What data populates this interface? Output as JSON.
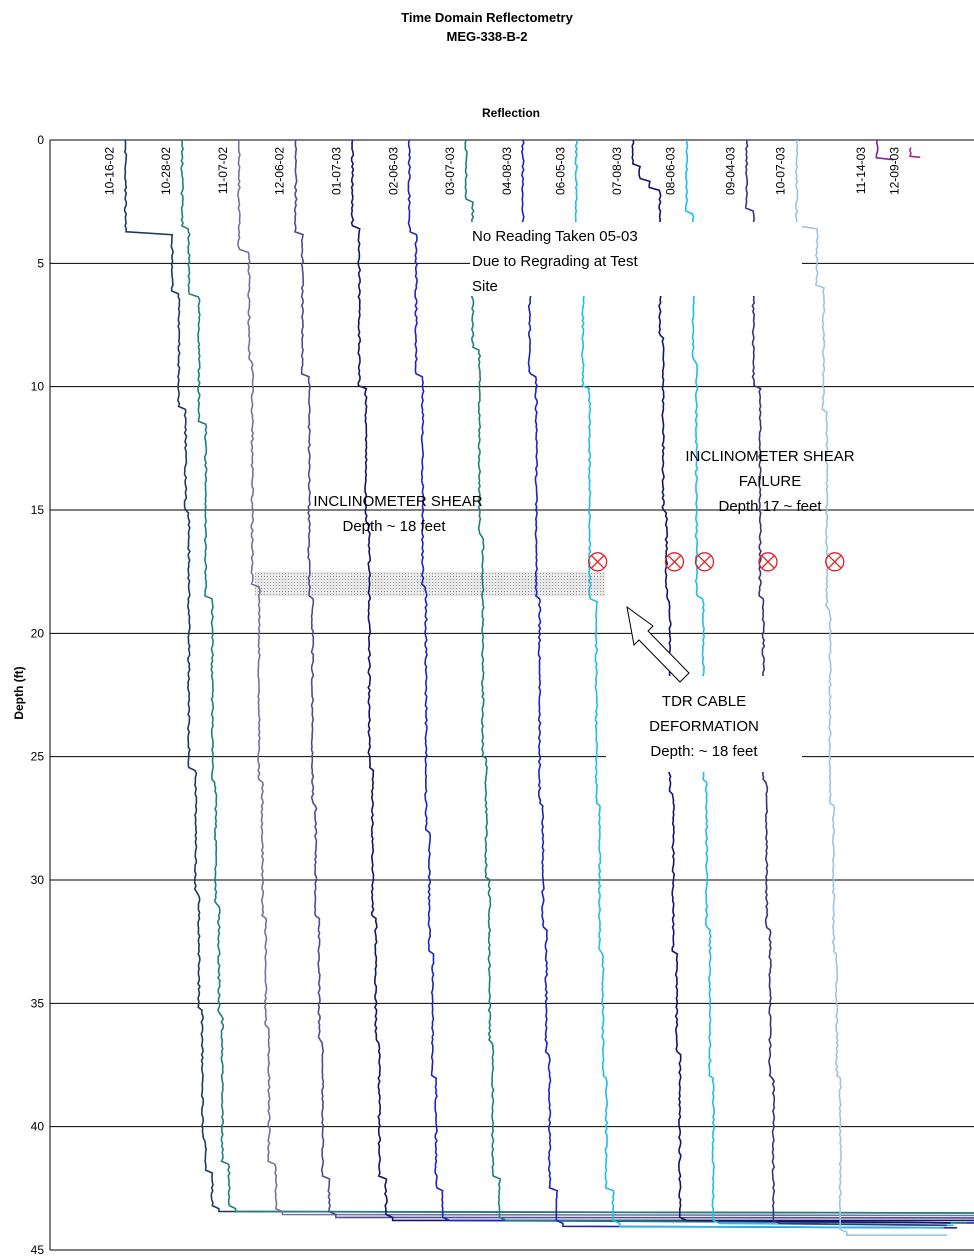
{
  "chart_data": {
    "type": "line",
    "title": "Time Domain Reflectometry",
    "subtitle": "MEG-338-B-2",
    "xlabel": "Reflection",
    "ylabel": "Depth (ft)",
    "ylim": [
      0,
      45
    ],
    "yticks": [
      0,
      5,
      10,
      15,
      20,
      25,
      30,
      35,
      40,
      45
    ],
    "y_inverted": true,
    "grid": "horizontal",
    "series": [
      {
        "name": "10-16-02",
        "color": "#1F3864",
        "offset": 0.1,
        "steps": [
          [
            0,
            0
          ],
          [
            3.8,
            0.14
          ],
          [
            6.2,
            0.16
          ],
          [
            10.8,
            0.18
          ],
          [
            15,
            0.19
          ],
          [
            25.5,
            0.21
          ],
          [
            30.5,
            0.22
          ],
          [
            35.2,
            0.23
          ],
          [
            40.5,
            0.24
          ],
          [
            41.8,
            0.26
          ],
          [
            43.3,
            0.28
          ],
          [
            43.5,
            2.6
          ]
        ]
      },
      {
        "name": "10-28-02",
        "color": "#1F7F7A",
        "offset": 0.27,
        "steps": [
          [
            0,
            0
          ],
          [
            3.5,
            0.02
          ],
          [
            6.3,
            0.05
          ],
          [
            11.5,
            0.07
          ],
          [
            18.5,
            0.09
          ],
          [
            26,
            0.1
          ],
          [
            31,
            0.11
          ],
          [
            35.5,
            0.12
          ],
          [
            41.5,
            0.14
          ],
          [
            43.3,
            0.16
          ],
          [
            43.5,
            2.4
          ]
        ]
      },
      {
        "name": "11-07-02",
        "color": "#76719E",
        "offset": 0.44,
        "steps": [
          [
            0,
            0
          ],
          [
            4.5,
            0.03
          ],
          [
            9,
            0.04
          ],
          [
            18,
            0.06
          ],
          [
            26,
            0.07
          ],
          [
            31.5,
            0.08
          ],
          [
            36,
            0.09
          ],
          [
            41.5,
            0.11
          ],
          [
            43.4,
            0.13
          ],
          [
            43.6,
            2.3
          ]
        ]
      },
      {
        "name": "12-06-02",
        "color": "#4F4A94",
        "offset": 0.61,
        "steps": [
          [
            0,
            0
          ],
          [
            3.8,
            0.02
          ],
          [
            9.5,
            0.04
          ],
          [
            18.5,
            0.05
          ],
          [
            27,
            0.06
          ],
          [
            31.5,
            0.07
          ],
          [
            36.5,
            0.08
          ],
          [
            42,
            0.1
          ],
          [
            43.5,
            0.12
          ],
          [
            43.7,
            2.1
          ]
        ]
      },
      {
        "name": "01-07-03",
        "color": "#14146B",
        "offset": 0.78,
        "steps": [
          [
            0,
            0
          ],
          [
            3.5,
            0.02
          ],
          [
            10,
            0.04
          ],
          [
            15.5,
            0.05
          ],
          [
            25.5,
            0.06
          ],
          [
            31.5,
            0.07
          ],
          [
            36.5,
            0.08
          ],
          [
            42,
            0.1
          ],
          [
            43.6,
            0.12
          ],
          [
            43.8,
            1.9
          ]
        ]
      },
      {
        "name": "02-06-03",
        "color": "#1F22C4",
        "offset": 0.95,
        "steps": [
          [
            0,
            0
          ],
          [
            3.8,
            0.02
          ],
          [
            9.5,
            0.04
          ],
          [
            18,
            0.05
          ],
          [
            28,
            0.06
          ],
          [
            33,
            0.07
          ],
          [
            38,
            0.08
          ],
          [
            42.5,
            0.1
          ],
          [
            43.7,
            0.12
          ],
          [
            43.9,
            1.7
          ]
        ]
      },
      {
        "name": "03-07-03",
        "color": "#1F7F7A",
        "offset": 1.12,
        "steps": [
          [
            0,
            0
          ],
          [
            2.5,
            0.02
          ],
          [
            8.5,
            0.04
          ],
          [
            16,
            0.05
          ],
          [
            25,
            0.06
          ],
          [
            30,
            0.07
          ],
          [
            36.5,
            0.08
          ],
          [
            42,
            0.1
          ],
          [
            43.7,
            0.12
          ],
          [
            43.9,
            1.5
          ]
        ]
      },
      {
        "name": "04-08-03",
        "color": "#1F22C4",
        "offset": 1.29,
        "steps": [
          [
            0,
            0
          ],
          [
            3.5,
            0.02
          ],
          [
            9.5,
            0.04
          ],
          [
            18.5,
            0.05
          ],
          [
            27,
            0.06
          ],
          [
            32,
            0.07
          ],
          [
            37,
            0.08
          ],
          [
            42.5,
            0.1
          ],
          [
            43.9,
            0.12
          ],
          [
            44.1,
            1.3
          ]
        ]
      },
      {
        "name": "06-05-03",
        "color": "#22BCE8",
        "offset": 1.45,
        "steps": [
          [
            0,
            0
          ],
          [
            3.5,
            0.02
          ],
          [
            10,
            0.04
          ],
          [
            18.7,
            0.06
          ],
          [
            27,
            0.07
          ],
          [
            33,
            0.08
          ],
          [
            38,
            0.09
          ],
          [
            42.5,
            0.11
          ],
          [
            43.9,
            0.13
          ],
          [
            44.1,
            1.1
          ]
        ]
      },
      {
        "name": "07-08-03",
        "color": "#14146B",
        "offset": 1.62,
        "steps": [
          [
            0,
            0
          ],
          [
            1,
            0.02
          ],
          [
            1.6,
            0.05
          ],
          [
            2,
            0.08
          ],
          [
            3,
            0.08
          ],
          [
            8,
            0.09
          ],
          [
            15,
            0.1
          ],
          [
            18.6,
            0.11
          ],
          [
            26.5,
            0.12
          ],
          [
            33,
            0.13
          ],
          [
            37,
            0.14
          ],
          [
            43.7,
            0.16
          ],
          [
            43.9,
            0.95
          ]
        ]
      },
      {
        "name": "08-06-03",
        "color": "#22BCE8",
        "offset": 1.78,
        "steps": [
          [
            0,
            0
          ],
          [
            3,
            0.02
          ],
          [
            9,
            0.03
          ],
          [
            18.5,
            0.05
          ],
          [
            26,
            0.06
          ],
          [
            32,
            0.07
          ],
          [
            38,
            0.08
          ],
          [
            43.8,
            0.1
          ],
          [
            44,
            0.8
          ]
        ]
      },
      {
        "name": "09-04-03",
        "color": "#38357A",
        "offset": 1.96,
        "steps": [
          [
            0,
            0
          ],
          [
            2.8,
            0.02
          ],
          [
            10,
            0.04
          ],
          [
            18.5,
            0.05
          ],
          [
            26,
            0.06
          ],
          [
            32,
            0.07
          ],
          [
            38,
            0.08
          ],
          [
            43.8,
            0.1
          ],
          [
            44,
            0.6
          ]
        ]
      },
      {
        "name": "10-07-03",
        "color": "#9DC3E6",
        "offset": 2.11,
        "steps": [
          [
            0,
            0
          ],
          [
            3.5,
            0.06
          ],
          [
            6,
            0.08
          ],
          [
            11,
            0.09
          ],
          [
            19,
            0.1
          ],
          [
            27,
            0.11
          ],
          [
            33,
            0.12
          ],
          [
            38,
            0.13
          ],
          [
            44.2,
            0.15
          ],
          [
            44.4,
            0.45
          ]
        ]
      },
      {
        "name": "11-14-03",
        "color": "#7B1FA2",
        "offset": 2.35,
        "steps": [
          [
            0,
            0
          ],
          [
            0.8,
            0.05
          ]
        ]
      },
      {
        "name": "12-09-03",
        "color": "#A0298C",
        "offset": 2.45,
        "steps": [
          [
            0.3,
            0
          ],
          [
            0.7,
            0.03
          ]
        ]
      }
    ],
    "annotations": [
      {
        "text": [
          "No Reading Taken 05-03",
          "Due to Regrading at Test",
          "Site"
        ]
      },
      {
        "text": [
          "INCLINOMETER SHEAR",
          "Depth ~ 18 feet"
        ]
      },
      {
        "text": [
          "INCLINOMETER SHEAR",
          "FAILURE",
          "Depth 17 ~ feet"
        ]
      },
      {
        "text": [
          "TDR CABLE",
          "DEFORMATION",
          "Depth: ~ 18 feet"
        ]
      }
    ],
    "shear_band_depth": [
      17.5,
      18.5
    ],
    "failure_markers": {
      "depth": 17.1,
      "at_series": [
        "06-05-03",
        "07-08-03",
        "08-06-03",
        "09-04-03",
        "10-07-03"
      ]
    }
  }
}
